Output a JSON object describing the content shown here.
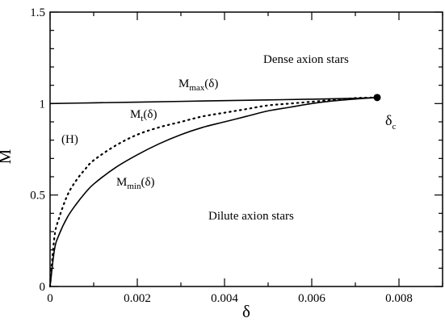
{
  "chart_data": {
    "type": "line",
    "xlabel": "δ",
    "ylabel": "M",
    "xlim": [
      0,
      0.009
    ],
    "ylim": [
      0,
      1.5
    ],
    "x_ticks": [
      "0",
      "0.002",
      "0.004",
      "0.006",
      "0.008"
    ],
    "x_tick_values": [
      0,
      0.002,
      0.004,
      0.006,
      0.008
    ],
    "y_ticks": [
      "0",
      "0.5",
      "1",
      "1.5"
    ],
    "y_tick_values": [
      0,
      0.5,
      1,
      1.5
    ],
    "grid": false,
    "series": [
      {
        "key": "max",
        "style": "solid",
        "x": [
          0,
          0.001,
          0.002,
          0.003,
          0.004,
          0.005,
          0.006,
          0.007,
          0.0075
        ],
        "y": [
          1.0,
          1.004,
          1.008,
          1.012,
          1.016,
          1.02,
          1.024,
          1.029,
          1.033
        ]
      },
      {
        "key": "t",
        "style": "dotted",
        "x": [
          0,
          0.0001,
          0.0002,
          0.0004,
          0.0006,
          0.0008,
          0.001,
          0.0015,
          0.002,
          0.0025,
          0.003,
          0.0035,
          0.004,
          0.0045,
          0.005,
          0.0055,
          0.006,
          0.0065,
          0.007,
          0.0075
        ],
        "y": [
          0.0,
          0.27,
          0.37,
          0.5,
          0.58,
          0.64,
          0.69,
          0.77,
          0.83,
          0.87,
          0.9,
          0.93,
          0.95,
          0.97,
          0.99,
          1.0,
          1.01,
          1.02,
          1.03,
          1.033
        ]
      },
      {
        "key": "min",
        "style": "solid",
        "x": [
          0,
          0.0001,
          0.0002,
          0.0004,
          0.0006,
          0.0008,
          0.001,
          0.0015,
          0.002,
          0.0025,
          0.003,
          0.0035,
          0.004,
          0.0045,
          0.005,
          0.0055,
          0.006,
          0.0065,
          0.007,
          0.0075
        ],
        "y": [
          0.0,
          0.2,
          0.28,
          0.38,
          0.45,
          0.51,
          0.56,
          0.65,
          0.72,
          0.78,
          0.83,
          0.87,
          0.9,
          0.93,
          0.96,
          0.98,
          1.0,
          1.015,
          1.025,
          1.033
        ]
      }
    ],
    "critical_point": {
      "x": 0.0075,
      "y": 1.033
    },
    "annotations": {
      "dense": "Dense axion stars",
      "dilute": "Dilute axion stars",
      "h_region": "(H)",
      "mmax_base": "M",
      "mmax_sub": "max",
      "mmax_arg": "(δ)",
      "mt_base": "M",
      "mt_sub": "t",
      "mt_arg": "(δ)",
      "mmin_base": "M",
      "mmin_sub": "min",
      "mmin_arg": "(δ)",
      "delta_c_base": "δ",
      "delta_c_sub": "c"
    }
  }
}
